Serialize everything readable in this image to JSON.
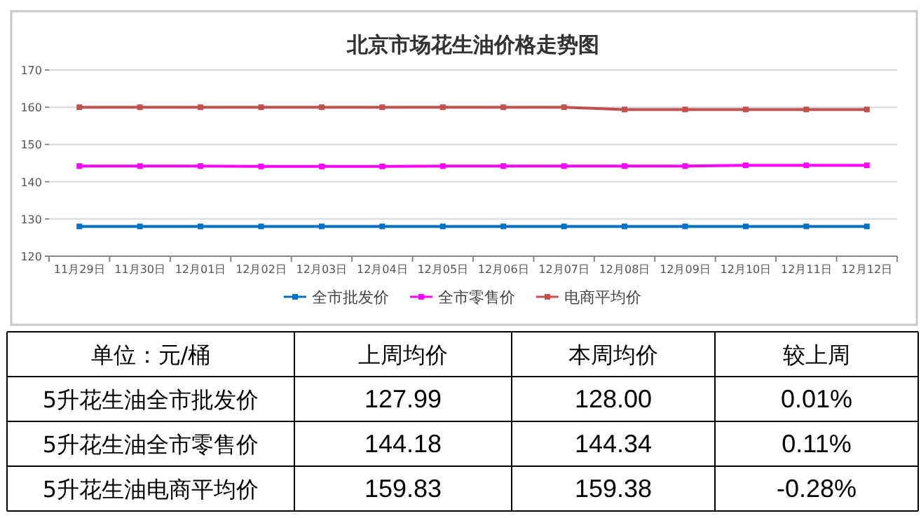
{
  "chart_data": [
    {
      "type": "line",
      "title": "北京市场花生油价格走势图",
      "categories": [
        "11月29日",
        "11月30日",
        "12月01日",
        "12月02日",
        "12月03日",
        "12月04日",
        "12月05日",
        "12月06日",
        "12月07日",
        "12月08日",
        "12月09日",
        "12月10日",
        "12月11日",
        "12月12日"
      ],
      "series": [
        {
          "name": "全市批发价",
          "color": "#0070c0",
          "values": [
            128,
            128,
            128,
            128,
            128,
            128,
            128,
            128,
            128,
            128,
            128,
            128,
            128,
            128
          ]
        },
        {
          "name": "全市零售价",
          "color": "#ff00ff",
          "values": [
            144.2,
            144.2,
            144.2,
            144.1,
            144.1,
            144.1,
            144.2,
            144.2,
            144.2,
            144.2,
            144.2,
            144.4,
            144.4,
            144.4
          ]
        },
        {
          "name": "电商平均价",
          "color": "#c0504d",
          "values": [
            160,
            160,
            160,
            160,
            160,
            160,
            160,
            160,
            160,
            159.4,
            159.4,
            159.4,
            159.4,
            159.4
          ]
        }
      ],
      "ylim": [
        120,
        170
      ],
      "yticks": [
        120,
        130,
        140,
        150,
        160,
        170
      ],
      "grid": "y",
      "legend": "bottom",
      "marker": "square",
      "line_style": "solid"
    },
    {
      "type": "other",
      "annotations": [
        "单位：元/桶"
      ],
      "categories": [
        "上周均价",
        "本周均价",
        "较上周"
      ],
      "y_categories": [
        "5升花生油全市批发价",
        "5升花生油全市零售价",
        "5升花生油电商平均价"
      ],
      "cell_labels": [
        [
          "127.99",
          "128.00",
          "0.01%"
        ],
        [
          "144.18",
          "144.34",
          "0.11%"
        ],
        [
          "159.83",
          "159.38",
          "-0.28%"
        ]
      ]
    }
  ]
}
